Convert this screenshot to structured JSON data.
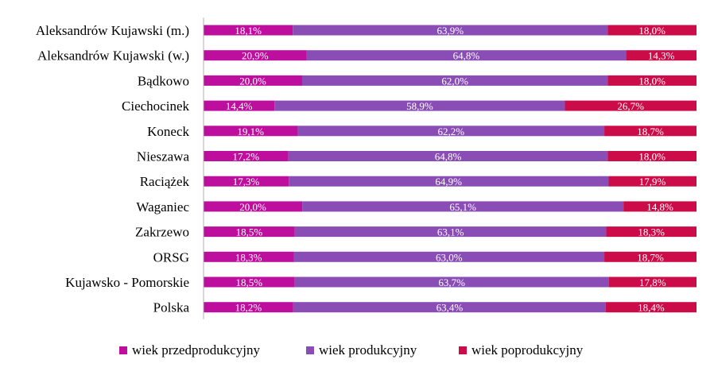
{
  "chart_data": {
    "type": "bar",
    "orientation": "horizontal",
    "stacked": "100%",
    "title": "",
    "xlabel": "",
    "ylabel": "",
    "categories": [
      "Aleksandrów Kujawski (m.)",
      "Aleksandrów Kujawski (w.)",
      "Bądkowo",
      "Ciechocinek",
      "Koneck",
      "Nieszawa",
      "Raciążek",
      "Waganiec",
      "Zakrzewo",
      "ORSG",
      "Kujawsko - Pomorskie",
      "Polska"
    ],
    "series": [
      {
        "name": "wiek przedprodukcyjny",
        "color": "#BE0E9E",
        "values": [
          18.1,
          20.9,
          20.0,
          14.4,
          19.1,
          17.2,
          17.3,
          20.0,
          18.5,
          18.3,
          18.5,
          18.2
        ],
        "labels": [
          "18,1%",
          "20,9%",
          "20,0%",
          "14,4%",
          "19,1%",
          "17,2%",
          "17,3%",
          "20,0%",
          "18,5%",
          "18,3%",
          "18,5%",
          "18,2%"
        ]
      },
      {
        "name": "wiek produkcyjny",
        "color": "#8A4DB5",
        "values": [
          63.9,
          64.8,
          62.0,
          58.9,
          62.2,
          64.8,
          64.9,
          65.1,
          63.1,
          63.0,
          63.7,
          63.4
        ],
        "labels": [
          "63,9%",
          "64,8%",
          "62,0%",
          "58,9%",
          "62,2%",
          "64,8%",
          "64,9%",
          "65,1%",
          "63,1%",
          "63,0%",
          "63,7%",
          "63,4%"
        ]
      },
      {
        "name": "wiek poprodukcyjny",
        "color": "#CC0C49",
        "values": [
          18.0,
          14.3,
          18.0,
          26.7,
          18.7,
          18.0,
          17.9,
          14.8,
          18.3,
          18.7,
          17.8,
          18.4
        ],
        "labels": [
          "18,0%",
          "14,3%",
          "18,0%",
          "26,7%",
          "18,7%",
          "18,0%",
          "17,9%",
          "14,8%",
          "18,3%",
          "18,7%",
          "17,8%",
          "18,4%"
        ]
      }
    ],
    "xlim": [
      0,
      100
    ],
    "grid": false,
    "legend_position": "bottom"
  }
}
